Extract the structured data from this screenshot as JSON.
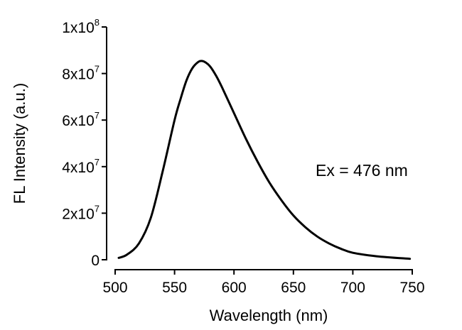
{
  "chart_data": {
    "type": "line",
    "title": "",
    "xlabel": "Wavelength (nm)",
    "ylabel": "FL Intensity (a.u.)",
    "xlim": [
      500,
      750
    ],
    "ylim": [
      0,
      100000000
    ],
    "x_ticks": [
      500,
      550,
      600,
      650,
      700,
      750
    ],
    "y_ticks": [
      {
        "value": 0,
        "mantissa": "0",
        "exponent": ""
      },
      {
        "value": 20000000,
        "mantissa": "2x10",
        "exponent": "7"
      },
      {
        "value": 40000000,
        "mantissa": "4x10",
        "exponent": "7"
      },
      {
        "value": 60000000,
        "mantissa": "6x10",
        "exponent": "7"
      },
      {
        "value": 80000000,
        "mantissa": "8x10",
        "exponent": "7"
      },
      {
        "value": 100000000,
        "mantissa": "1x10",
        "exponent": "8"
      }
    ],
    "annotation": "Ex = 476 nm",
    "grid": false,
    "legend": "none",
    "line_color": "#000000",
    "series": [
      {
        "x": [
          503,
          510,
          520,
          530,
          540,
          550,
          555,
          560,
          565,
          570,
          573,
          576,
          580,
          585,
          590,
          600,
          610,
          620,
          630,
          640,
          650,
          660,
          670,
          680,
          690,
          700,
          720,
          748
        ],
        "y": [
          800000,
          2200000,
          7000000,
          18000000,
          38000000,
          60000000,
          69000000,
          77000000,
          82300000,
          85000000,
          85400000,
          84800000,
          83000000,
          79000000,
          74000000,
          63000000,
          52000000,
          42000000,
          33000000,
          25500000,
          19000000,
          14000000,
          10000000,
          7000000,
          4700000,
          3000000,
          1500000,
          400000
        ]
      }
    ]
  }
}
